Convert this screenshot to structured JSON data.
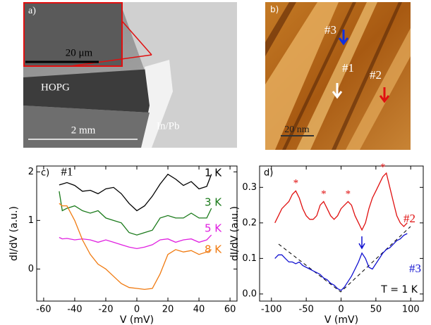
{
  "images": {
    "a": {
      "label": "a)",
      "inset_scale": "20 μm",
      "material": "HOPG",
      "scale": "2 mm",
      "contact": "In/Pb"
    },
    "b": {
      "label": "b)",
      "points": [
        "#3",
        "#1",
        "#2"
      ],
      "scale": "20 nm"
    }
  },
  "chart_data": [
    {
      "type": "line",
      "panel_label": "c)",
      "x_label": "V (mV)",
      "y_label": "dI/dV (a.u.)",
      "xlim": [
        -64.5,
        64.5
      ],
      "ylim": [
        -0.66,
        2.12
      ],
      "xticks": [
        -60,
        -40,
        -20,
        0,
        20,
        40,
        60
      ],
      "yticks": [
        0,
        1,
        2
      ],
      "annotations": [
        {
          "text": "#1",
          "x": -45,
          "y": 1.98
        }
      ],
      "x": [
        -50,
        -48,
        -45,
        -40,
        -35,
        -30,
        -25,
        -20,
        -15,
        -10,
        -5,
        0,
        5,
        10,
        15,
        20,
        25,
        30,
        35,
        40,
        45,
        48
      ],
      "series": [
        {
          "name": "1 K",
          "color": "#000000",
          "values": [
            1.73,
            1.75,
            1.78,
            1.72,
            1.6,
            1.62,
            1.55,
            1.65,
            1.68,
            1.55,
            1.35,
            1.2,
            1.3,
            1.5,
            1.75,
            1.95,
            1.85,
            1.72,
            1.8,
            1.65,
            1.7,
            1.95
          ]
        },
        {
          "name": "3 K",
          "color": "#1a7a1a",
          "values": [
            1.6,
            1.2,
            1.25,
            1.3,
            1.2,
            1.15,
            1.2,
            1.05,
            1.0,
            0.95,
            0.75,
            0.7,
            0.75,
            0.8,
            1.05,
            1.1,
            1.05,
            1.05,
            1.15,
            1.05,
            1.05,
            1.25
          ]
        },
        {
          "name": "5 K",
          "color": "#e020e0",
          "values": [
            0.65,
            0.62,
            0.63,
            0.6,
            0.62,
            0.6,
            0.55,
            0.6,
            0.55,
            0.5,
            0.45,
            0.42,
            0.45,
            0.5,
            0.6,
            0.62,
            0.55,
            0.6,
            0.62,
            0.55,
            0.6,
            0.7
          ]
        },
        {
          "name": "8 K",
          "color": "#f07a10",
          "values": [
            1.35,
            1.3,
            1.3,
            1.0,
            0.6,
            0.3,
            0.1,
            0.0,
            -0.15,
            -0.3,
            -0.38,
            -0.4,
            -0.42,
            -0.4,
            -0.1,
            0.3,
            0.4,
            0.35,
            0.38,
            0.3,
            0.35,
            0.4
          ]
        }
      ]
    },
    {
      "type": "line",
      "panel_label": "d)",
      "x_label": "V (mV)",
      "y_label": "dI/dV (a.u.)",
      "xlim": [
        -117,
        118
      ],
      "ylim": [
        -0.02,
        0.36
      ],
      "xticks": [
        -100,
        -50,
        0,
        50,
        100
      ],
      "yticks": [
        {
          "value": 0,
          "label": "0.0"
        },
        0.1,
        0.2,
        0.3
      ],
      "note": "T = 1 K",
      "annotations": [
        {
          "text": "*",
          "x": -65,
          "y": 0.31
        },
        {
          "text": "*",
          "x": -25,
          "y": 0.28
        },
        {
          "text": "*",
          "x": 10,
          "y": 0.28
        },
        {
          "text": "*",
          "x": 60,
          "y": 0.355
        }
      ],
      "x": [
        -95,
        -90,
        -85,
        -80,
        -75,
        -70,
        -65,
        -60,
        -55,
        -50,
        -45,
        -40,
        -35,
        -30,
        -25,
        -20,
        -15,
        -10,
        -5,
        0,
        5,
        10,
        15,
        20,
        25,
        30,
        35,
        40,
        45,
        50,
        55,
        60,
        65,
        70,
        75,
        80,
        85,
        90,
        95
      ],
      "series": [
        {
          "name": "#2",
          "color": "#e01010",
          "values": [
            0.2,
            0.22,
            0.24,
            0.25,
            0.26,
            0.28,
            0.29,
            0.27,
            0.24,
            0.22,
            0.21,
            0.21,
            0.22,
            0.25,
            0.26,
            0.24,
            0.22,
            0.21,
            0.22,
            0.24,
            0.25,
            0.26,
            0.25,
            0.22,
            0.2,
            0.18,
            0.2,
            0.24,
            0.27,
            0.29,
            0.31,
            0.33,
            0.34,
            0.3,
            0.26,
            0.22,
            0.2,
            0.19,
            0.2
          ]
        },
        {
          "name": "#3",
          "color": "#1010d0",
          "values": [
            0.1,
            0.11,
            0.11,
            0.1,
            0.09,
            0.09,
            0.085,
            0.09,
            0.08,
            0.075,
            0.07,
            0.065,
            0.06,
            0.055,
            0.045,
            0.04,
            0.03,
            0.025,
            0.015,
            0.01,
            0.02,
            0.035,
            0.05,
            0.07,
            0.09,
            0.115,
            0.1,
            0.075,
            0.07,
            0.085,
            0.1,
            0.115,
            0.125,
            0.13,
            0.14,
            0.15,
            0.155,
            0.165,
            0.17
          ]
        }
      ]
    }
  ]
}
